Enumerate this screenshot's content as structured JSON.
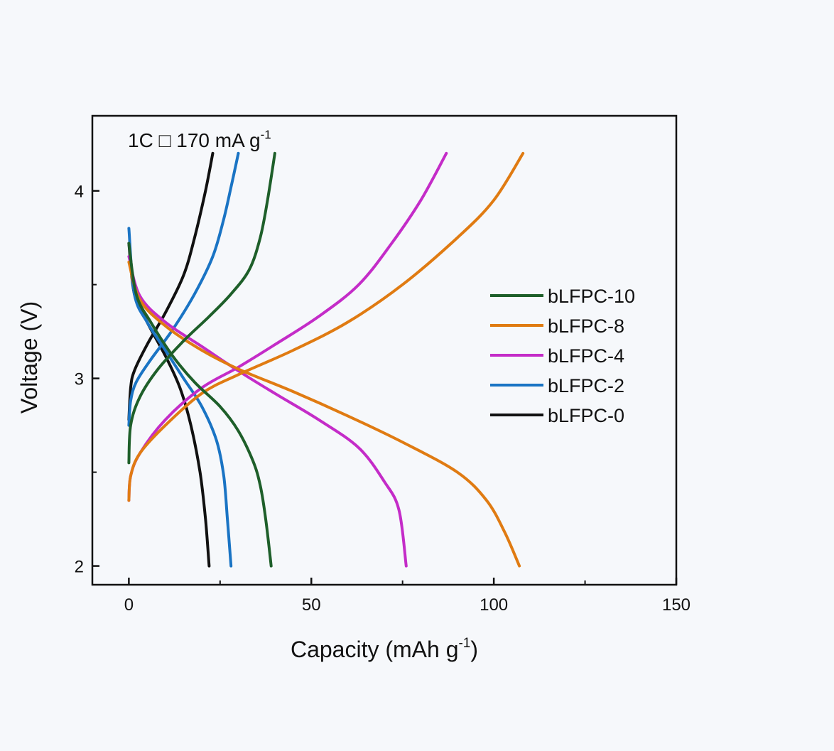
{
  "chart_data": {
    "type": "line",
    "title": "",
    "annotation": {
      "text": "1C □ 170 mA g",
      "superscript": "-1"
    },
    "xlabel": {
      "text": "Capacity (mAh g",
      "superscript": "-1",
      "tail": ")"
    },
    "ylabel": "Voltage (V)",
    "xlim": [
      -10,
      150
    ],
    "ylim": [
      1.9,
      4.4
    ],
    "xticks": [
      0,
      50,
      100,
      150
    ],
    "xtick_labels": [
      "0",
      "50",
      "100",
      "150"
    ],
    "xminor": [
      25,
      75,
      125
    ],
    "yticks": [
      2,
      3,
      4
    ],
    "ytick_labels": [
      "2",
      "3",
      "4"
    ],
    "yminor": [
      2.5,
      3.5
    ],
    "grid": false,
    "legend_position": "right",
    "series": [
      {
        "name": "bLFPC-10",
        "color": "#1e5f2a",
        "charge": [
          [
            0,
            2.55
          ],
          [
            0.5,
            2.75
          ],
          [
            3,
            2.9
          ],
          [
            8,
            3.05
          ],
          [
            15,
            3.2
          ],
          [
            22,
            3.33
          ],
          [
            28,
            3.45
          ],
          [
            33,
            3.58
          ],
          [
            36,
            3.75
          ],
          [
            38,
            3.95
          ],
          [
            40,
            4.2
          ]
        ],
        "discharge": [
          [
            0,
            3.72
          ],
          [
            2,
            3.45
          ],
          [
            6,
            3.3
          ],
          [
            12,
            3.12
          ],
          [
            18,
            2.98
          ],
          [
            25,
            2.85
          ],
          [
            30,
            2.72
          ],
          [
            34,
            2.56
          ],
          [
            36,
            2.43
          ],
          [
            37.5,
            2.25
          ],
          [
            39,
            2.0
          ]
        ]
      },
      {
        "name": "bLFPC-8",
        "color": "#e07b12",
        "charge": [
          [
            0,
            2.35
          ],
          [
            0.5,
            2.48
          ],
          [
            3,
            2.6
          ],
          [
            10,
            2.75
          ],
          [
            20,
            2.92
          ],
          [
            30,
            3.02
          ],
          [
            45,
            3.15
          ],
          [
            60,
            3.3
          ],
          [
            75,
            3.5
          ],
          [
            90,
            3.75
          ],
          [
            100,
            3.95
          ],
          [
            108,
            4.2
          ]
        ],
        "discharge": [
          [
            0,
            3.62
          ],
          [
            3,
            3.42
          ],
          [
            10,
            3.28
          ],
          [
            20,
            3.15
          ],
          [
            30,
            3.05
          ],
          [
            45,
            2.93
          ],
          [
            60,
            2.8
          ],
          [
            75,
            2.66
          ],
          [
            90,
            2.5
          ],
          [
            98,
            2.35
          ],
          [
            103,
            2.18
          ],
          [
            107,
            2.0
          ]
        ]
      },
      {
        "name": "bLFPC-4",
        "color": "#c42cc8",
        "charge": [
          [
            0,
            2.35
          ],
          [
            0.5,
            2.48
          ],
          [
            3,
            2.6
          ],
          [
            10,
            2.78
          ],
          [
            20,
            2.95
          ],
          [
            30,
            3.06
          ],
          [
            40,
            3.18
          ],
          [
            52,
            3.33
          ],
          [
            63,
            3.5
          ],
          [
            72,
            3.72
          ],
          [
            80,
            3.95
          ],
          [
            87,
            4.2
          ]
        ],
        "discharge": [
          [
            0,
            3.65
          ],
          [
            3,
            3.44
          ],
          [
            10,
            3.3
          ],
          [
            20,
            3.17
          ],
          [
            30,
            3.04
          ],
          [
            40,
            2.92
          ],
          [
            52,
            2.78
          ],
          [
            63,
            2.63
          ],
          [
            70,
            2.45
          ],
          [
            74,
            2.3
          ],
          [
            76,
            2.0
          ]
        ]
      },
      {
        "name": "bLFPC-2",
        "color": "#1a74c4",
        "charge": [
          [
            0,
            2.75
          ],
          [
            0.5,
            2.88
          ],
          [
            2,
            2.98
          ],
          [
            6,
            3.1
          ],
          [
            12,
            3.26
          ],
          [
            18,
            3.45
          ],
          [
            23,
            3.65
          ],
          [
            26,
            3.85
          ],
          [
            28,
            4.02
          ],
          [
            30,
            4.2
          ]
        ],
        "discharge": [
          [
            0,
            3.8
          ],
          [
            1.5,
            3.45
          ],
          [
            5,
            3.3
          ],
          [
            10,
            3.15
          ],
          [
            15,
            3.0
          ],
          [
            20,
            2.85
          ],
          [
            24,
            2.67
          ],
          [
            26,
            2.48
          ],
          [
            27,
            2.25
          ],
          [
            28,
            2.0
          ]
        ]
      },
      {
        "name": "bLFPC-0",
        "color": "#111111",
        "charge": [
          [
            0,
            2.78
          ],
          [
            0.5,
            2.95
          ],
          [
            1.5,
            3.04
          ],
          [
            5,
            3.18
          ],
          [
            10,
            3.35
          ],
          [
            15,
            3.55
          ],
          [
            18,
            3.75
          ],
          [
            21,
            4.0
          ],
          [
            23,
            4.2
          ]
        ],
        "discharge": [
          [
            0,
            3.72
          ],
          [
            1.5,
            3.45
          ],
          [
            5,
            3.3
          ],
          [
            10,
            3.12
          ],
          [
            14,
            2.95
          ],
          [
            17,
            2.75
          ],
          [
            19.5,
            2.5
          ],
          [
            21,
            2.25
          ],
          [
            22,
            2.0
          ]
        ]
      }
    ]
  }
}
